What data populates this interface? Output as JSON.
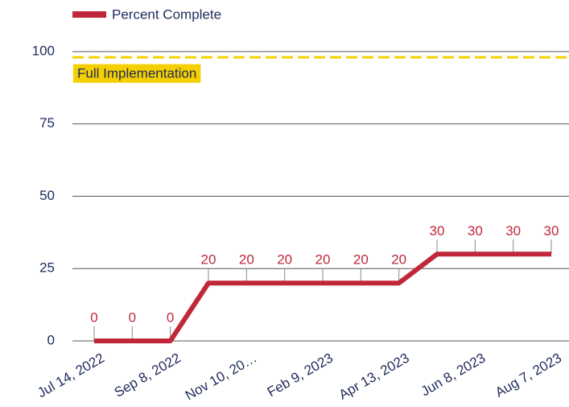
{
  "chart_data": {
    "type": "line",
    "categories": [
      "Jul 14, 2022",
      null,
      "Sep 8, 2022",
      null,
      "Nov 10, 20…",
      null,
      "Feb 9, 2023",
      null,
      "Apr 13, 2023",
      null,
      "Jun 8, 2023",
      null,
      "Aug 7, 2023"
    ],
    "series": [
      {
        "name": "Percent Complete",
        "color": "#c0273a",
        "values": [
          0,
          0,
          0,
          20,
          20,
          20,
          20,
          20,
          20,
          30,
          30,
          30,
          30
        ]
      }
    ],
    "ylim": [
      0,
      100
    ],
    "yticks": [
      0,
      25,
      50,
      75,
      100
    ],
    "grid": true,
    "reference_line": {
      "value": 98,
      "label": "Full Implementation",
      "color": "#f5d000"
    }
  }
}
